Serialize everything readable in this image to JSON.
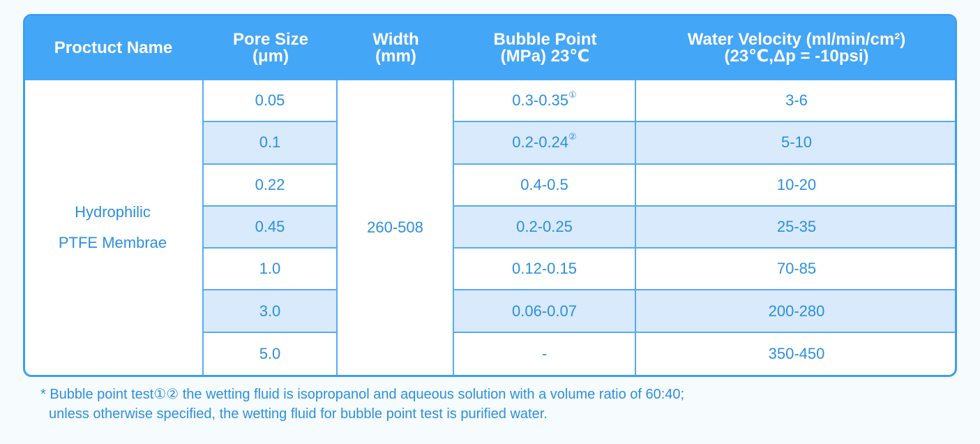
{
  "table": {
    "header": [
      [
        "Proctuct Name"
      ],
      [
        "Pore Size",
        "(μm)"
      ],
      [
        "Width",
        "(mm)"
      ],
      [
        "Bubble Point",
        "(MPa) 23℃"
      ],
      [
        "Water Velocity (ml/min/cm²)",
        "(23℃,Δp = -10psi)"
      ]
    ],
    "product": [
      "Hydrophilic",
      "PTFE Membrae"
    ],
    "width": "260-508",
    "rows": [
      {
        "pore": "0.05",
        "bubble": "0.3-0.35",
        "note": "①",
        "velocity": "3-6"
      },
      {
        "pore": "0.1",
        "bubble": "0.2-0.24",
        "note": "②",
        "velocity": "5-10"
      },
      {
        "pore": "0.22",
        "bubble": "0.4-0.5",
        "velocity": "10-20"
      },
      {
        "pore": "0.45",
        "bubble": "0.2-0.25",
        "velocity": "25-35"
      },
      {
        "pore": "1.0",
        "bubble": "0.12-0.15",
        "velocity": "70-85"
      },
      {
        "pore": "3.0",
        "bubble": "0.06-0.07",
        "velocity": "200-280"
      },
      {
        "pore": "5.0",
        "bubble": "-",
        "velocity": "350-450"
      }
    ]
  },
  "footnotes": [
    "* Bubble point test①② the wetting fluid is isopropanol and aqueous solution with a volume ratio of 60:40;",
    "unless otherwise specified, the wetting fluid for bubble point test is purified water."
  ]
}
